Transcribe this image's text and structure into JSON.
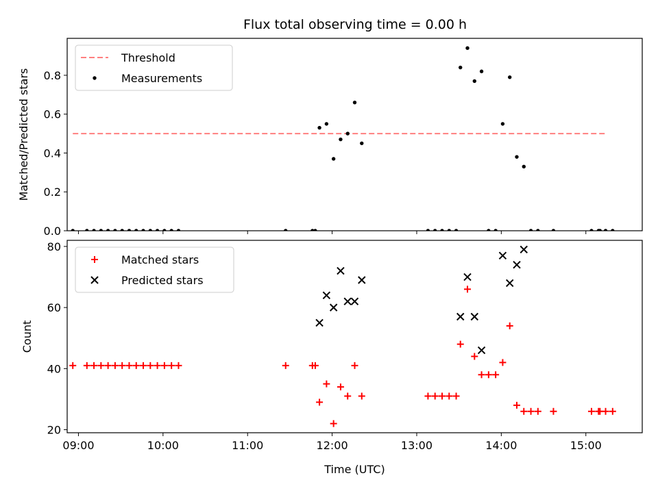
{
  "figure": {
    "title": "Flux total observing time = 0.00 h"
  },
  "chart_data": [
    {
      "type": "scatter",
      "title": "Flux total observing time = 0.00 h",
      "xlabel": "",
      "ylabel": "Matched/Predicted stars",
      "xlim": [
        "08:52",
        "15:40"
      ],
      "ylim": [
        0,
        0.99
      ],
      "y_ticks": [
        0.0,
        0.2,
        0.4,
        0.6,
        0.8
      ],
      "y_tick_labels": [
        "0.0",
        "0.2",
        "0.4",
        "0.6",
        "0.8"
      ],
      "legend": {
        "placement": "upper-left",
        "entries": [
          "Threshold",
          "Measurements"
        ]
      },
      "threshold": {
        "name": "Threshold",
        "value": 0.5,
        "x_start": "08:56",
        "x_end": "15:15",
        "color": "#ff7f7f",
        "style": "dashed"
      },
      "series": [
        {
          "name": "Measurements",
          "color": "#000000",
          "marker": "dot",
          "points": [
            [
              "08:56",
              0.0
            ],
            [
              "09:06",
              0.0
            ],
            [
              "09:11",
              0.0
            ],
            [
              "09:16",
              0.0
            ],
            [
              "09:21",
              0.0
            ],
            [
              "09:26",
              0.0
            ],
            [
              "09:31",
              0.0
            ],
            [
              "09:36",
              0.0
            ],
            [
              "09:41",
              0.0
            ],
            [
              "09:46",
              0.0
            ],
            [
              "09:51",
              0.0
            ],
            [
              "09:56",
              0.0
            ],
            [
              "10:01",
              0.0
            ],
            [
              "10:06",
              0.0
            ],
            [
              "10:11",
              0.0
            ],
            [
              "11:27",
              0.0
            ],
            [
              "11:46",
              0.0
            ],
            [
              "11:48",
              0.0
            ],
            [
              "11:51",
              0.53
            ],
            [
              "11:56",
              0.55
            ],
            [
              "12:01",
              0.37
            ],
            [
              "12:06",
              0.47
            ],
            [
              "12:11",
              0.5
            ],
            [
              "12:16",
              0.66
            ],
            [
              "12:21",
              0.45
            ],
            [
              "13:08",
              0.0
            ],
            [
              "13:13",
              0.0
            ],
            [
              "13:18",
              0.0
            ],
            [
              "13:23",
              0.0
            ],
            [
              "13:28",
              0.0
            ],
            [
              "13:31",
              0.84
            ],
            [
              "13:36",
              0.94
            ],
            [
              "13:41",
              0.77
            ],
            [
              "13:46",
              0.82
            ],
            [
              "13:51",
              0.0
            ],
            [
              "13:56",
              0.0
            ],
            [
              "14:01",
              0.55
            ],
            [
              "14:06",
              0.79
            ],
            [
              "14:11",
              0.38
            ],
            [
              "14:16",
              0.33
            ],
            [
              "14:21",
              0.0
            ],
            [
              "14:26",
              0.0
            ],
            [
              "14:37",
              0.0
            ],
            [
              "15:04",
              0.0
            ],
            [
              "15:09",
              0.0
            ],
            [
              "15:10",
              0.0
            ],
            [
              "15:14",
              0.0
            ],
            [
              "15:19",
              0.0
            ]
          ]
        }
      ]
    },
    {
      "type": "scatter",
      "title": "",
      "xlabel": "Time (UTC)",
      "ylabel": "Count",
      "xlim": [
        "08:52",
        "15:40"
      ],
      "ylim": [
        19,
        82
      ],
      "x_ticks": [
        "09:00",
        "10:00",
        "11:00",
        "12:00",
        "13:00",
        "14:00",
        "15:00"
      ],
      "x_tick_labels": [
        "09:00",
        "10:00",
        "11:00",
        "12:00",
        "13:00",
        "14:00",
        "15:00"
      ],
      "y_ticks": [
        20,
        40,
        60,
        80
      ],
      "y_tick_labels": [
        "20",
        "40",
        "60",
        "80"
      ],
      "legend": {
        "placement": "upper-left",
        "entries": [
          "Matched stars",
          "Predicted stars"
        ]
      },
      "series": [
        {
          "name": "Matched stars",
          "color": "#ff0000",
          "marker": "plus",
          "points": [
            [
              "08:56",
              41
            ],
            [
              "09:06",
              41
            ],
            [
              "09:11",
              41
            ],
            [
              "09:16",
              41
            ],
            [
              "09:21",
              41
            ],
            [
              "09:26",
              41
            ],
            [
              "09:31",
              41
            ],
            [
              "09:36",
              41
            ],
            [
              "09:41",
              41
            ],
            [
              "09:46",
              41
            ],
            [
              "09:51",
              41
            ],
            [
              "09:56",
              41
            ],
            [
              "10:01",
              41
            ],
            [
              "10:06",
              41
            ],
            [
              "10:11",
              41
            ],
            [
              "11:27",
              41
            ],
            [
              "11:46",
              41
            ],
            [
              "11:48",
              41
            ],
            [
              "11:51",
              29
            ],
            [
              "11:56",
              35
            ],
            [
              "12:01",
              22
            ],
            [
              "12:06",
              34
            ],
            [
              "12:11",
              31
            ],
            [
              "12:16",
              41
            ],
            [
              "12:21",
              31
            ],
            [
              "13:08",
              31
            ],
            [
              "13:13",
              31
            ],
            [
              "13:18",
              31
            ],
            [
              "13:23",
              31
            ],
            [
              "13:28",
              31
            ],
            [
              "13:31",
              48
            ],
            [
              "13:36",
              66
            ],
            [
              "13:41",
              44
            ],
            [
              "13:46",
              38
            ],
            [
              "13:51",
              38
            ],
            [
              "13:56",
              38
            ],
            [
              "14:01",
              42
            ],
            [
              "14:06",
              54
            ],
            [
              "14:11",
              28
            ],
            [
              "14:16",
              26
            ],
            [
              "14:21",
              26
            ],
            [
              "14:26",
              26
            ],
            [
              "14:37",
              26
            ],
            [
              "15:04",
              26
            ],
            [
              "15:09",
              26
            ],
            [
              "15:10",
              26
            ],
            [
              "15:14",
              26
            ],
            [
              "15:19",
              26
            ]
          ]
        },
        {
          "name": "Predicted stars",
          "color": "#000000",
          "marker": "x",
          "points": [
            [
              "11:51",
              55
            ],
            [
              "11:56",
              64
            ],
            [
              "12:01",
              60
            ],
            [
              "12:06",
              72
            ],
            [
              "12:11",
              62
            ],
            [
              "12:16",
              62
            ],
            [
              "12:21",
              69
            ],
            [
              "13:31",
              57
            ],
            [
              "13:36",
              70
            ],
            [
              "13:41",
              57
            ],
            [
              "13:46",
              46
            ],
            [
              "14:01",
              77
            ],
            [
              "14:06",
              68
            ],
            [
              "14:11",
              74
            ],
            [
              "14:16",
              79
            ]
          ]
        }
      ]
    }
  ]
}
